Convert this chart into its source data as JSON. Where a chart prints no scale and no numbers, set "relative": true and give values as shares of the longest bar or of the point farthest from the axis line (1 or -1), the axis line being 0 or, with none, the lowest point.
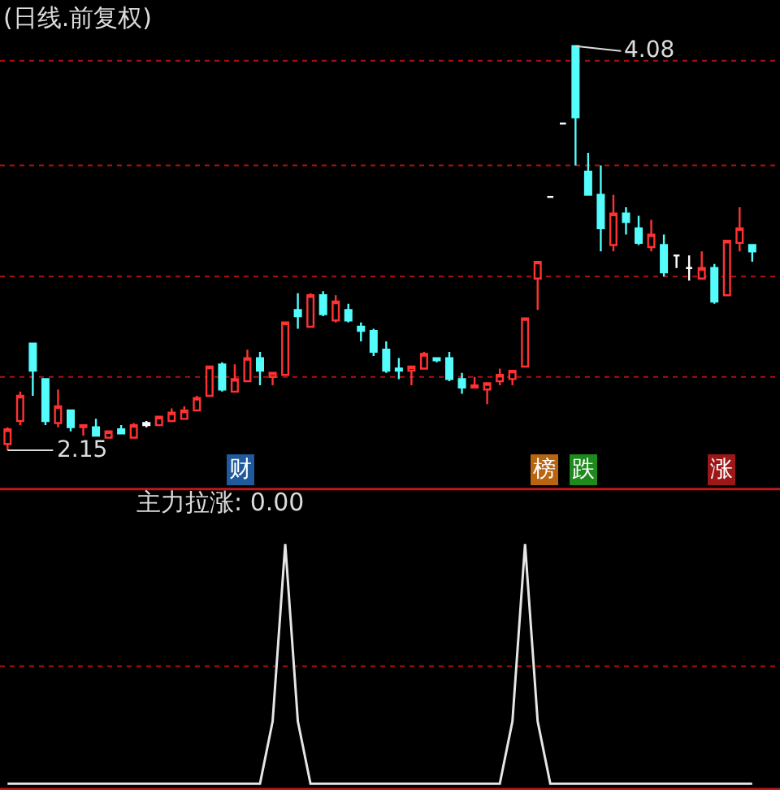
{
  "chart_data": [
    {
      "type": "candlestick",
      "title": "(日线.前复权)",
      "categories": [
        null,
        null,
        null,
        null,
        null,
        null,
        null,
        null,
        null,
        null,
        null,
        null,
        null,
        null,
        null,
        null,
        null,
        null,
        null,
        null,
        null,
        null,
        null,
        null,
        null,
        null,
        null,
        null,
        null,
        null,
        null,
        null,
        null,
        null,
        null,
        null,
        null,
        null,
        null,
        null,
        null,
        null,
        null,
        null,
        null,
        null,
        null,
        null,
        null,
        null,
        null,
        null,
        null,
        null,
        null,
        null,
        null,
        null,
        null,
        null
      ],
      "ohlc": [
        [
          2.18,
          2.26,
          2.15,
          2.25
        ],
        [
          2.29,
          2.43,
          2.27,
          2.41
        ],
        [
          2.66,
          2.66,
          2.41,
          2.53
        ],
        [
          2.49,
          2.49,
          2.27,
          2.29
        ],
        [
          2.28,
          2.44,
          2.26,
          2.36
        ],
        [
          2.34,
          2.34,
          2.24,
          2.26
        ],
        [
          2.26,
          2.27,
          2.22,
          2.27
        ],
        [
          2.26,
          2.3,
          2.22,
          2.22
        ],
        [
          2.21,
          2.24,
          2.21,
          2.24
        ],
        [
          2.25,
          2.27,
          2.23,
          2.23
        ],
        [
          2.21,
          2.28,
          2.21,
          2.27
        ],
        [
          2.27,
          2.29,
          2.26,
          2.28
        ],
        [
          2.27,
          2.31,
          2.27,
          2.31
        ],
        [
          2.29,
          2.35,
          2.29,
          2.33
        ],
        [
          2.3,
          2.36,
          2.3,
          2.34
        ],
        [
          2.34,
          2.41,
          2.34,
          2.4
        ],
        [
          2.41,
          2.55,
          2.41,
          2.55
        ],
        [
          2.56,
          2.57,
          2.43,
          2.44
        ],
        [
          2.43,
          2.56,
          2.43,
          2.49
        ],
        [
          2.48,
          2.63,
          2.48,
          2.59
        ],
        [
          2.59,
          2.62,
          2.46,
          2.53
        ],
        [
          2.5,
          2.52,
          2.46,
          2.52
        ],
        [
          2.51,
          2.76,
          2.51,
          2.76
        ],
        [
          2.82,
          2.9,
          2.73,
          2.79
        ],
        [
          2.74,
          2.9,
          2.74,
          2.89
        ],
        [
          2.89,
          2.91,
          2.79,
          2.8
        ],
        [
          2.77,
          2.89,
          2.76,
          2.86
        ],
        [
          2.82,
          2.85,
          2.76,
          2.77
        ],
        [
          2.74,
          2.76,
          2.67,
          2.72
        ],
        [
          2.72,
          2.73,
          2.6,
          2.62
        ],
        [
          2.63,
          2.67,
          2.52,
          2.53
        ],
        [
          2.54,
          2.59,
          2.49,
          2.53
        ],
        [
          2.53,
          2.55,
          2.46,
          2.55
        ],
        [
          2.54,
          2.62,
          2.54,
          2.61
        ],
        [
          2.59,
          2.59,
          2.57,
          2.58
        ],
        [
          2.59,
          2.62,
          2.48,
          2.49
        ],
        [
          2.49,
          2.52,
          2.42,
          2.45
        ],
        [
          2.45,
          2.5,
          2.45,
          2.46
        ],
        [
          2.44,
          2.47,
          2.37,
          2.47
        ],
        [
          2.48,
          2.54,
          2.46,
          2.51
        ],
        [
          2.49,
          2.53,
          2.46,
          2.53
        ],
        [
          2.55,
          2.78,
          2.55,
          2.78
        ],
        [
          2.97,
          3.05,
          2.82,
          3.05
        ],
        [
          3.36,
          3.36,
          3.36,
          3.36
        ],
        [
          3.71,
          3.71,
          3.71,
          3.71
        ],
        [
          4.08,
          4.08,
          3.51,
          3.74
        ],
        [
          3.48,
          3.57,
          3.37,
          3.37
        ],
        [
          3.37,
          3.51,
          3.1,
          3.21
        ],
        [
          3.13,
          3.37,
          3.1,
          3.28
        ],
        [
          3.28,
          3.31,
          3.18,
          3.24
        ],
        [
          3.21,
          3.27,
          3.13,
          3.14
        ],
        [
          3.12,
          3.25,
          3.1,
          3.18
        ],
        [
          3.13,
          3.18,
          2.98,
          3.0
        ],
        [
          3.08,
          3.08,
          3.02,
          3.08
        ],
        [
          3.02,
          3.08,
          2.96,
          3.02
        ],
        [
          2.97,
          3.1,
          2.97,
          3.02
        ],
        [
          3.02,
          3.04,
          2.85,
          2.86
        ],
        [
          2.89,
          3.15,
          2.89,
          3.15
        ],
        [
          3.14,
          3.31,
          3.1,
          3.21
        ],
        [
          3.13,
          3.13,
          3.05,
          3.1
        ]
      ],
      "colors": [
        "#ff3232",
        "#ff3232",
        "#54fcfc",
        "#54fcfc",
        "#ff3232",
        "#54fcfc",
        "#ff3232",
        "#54fcfc",
        "#ff3232",
        "#54fcfc",
        "#ff3232",
        "#ffffff",
        "#ff3232",
        "#ff3232",
        "#ff3232",
        "#ff3232",
        "#ff3232",
        "#54fcfc",
        "#ff3232",
        "#ff3232",
        "#54fcfc",
        "#ff3232",
        "#ff3232",
        "#54fcfc",
        "#ff3232",
        "#54fcfc",
        "#ff3232",
        "#54fcfc",
        "#54fcfc",
        "#54fcfc",
        "#54fcfc",
        "#54fcfc",
        "#ff3232",
        "#ff3232",
        "#54fcfc",
        "#54fcfc",
        "#54fcfc",
        "#ff3232",
        "#ff3232",
        "#ff3232",
        "#ff3232",
        "#ff3232",
        "#ff3232",
        "#ffffff",
        "#ffffff",
        "#54fcfc",
        "#54fcfc",
        "#54fcfc",
        "#ff3232",
        "#54fcfc",
        "#54fcfc",
        "#ff3232",
        "#54fcfc",
        "#ffffff",
        "#ffffff",
        "#ff3232",
        "#54fcfc",
        "#ff3232",
        "#ff3232",
        "#54fcfc"
      ],
      "ref_lines": [
        {
          "axis": "y",
          "value": 4.01,
          "color": "#b01010",
          "line_style": "dotted"
        },
        {
          "axis": "y",
          "value": 3.51,
          "color": "#b01010",
          "line_style": "dotted"
        },
        {
          "axis": "y",
          "value": 2.98,
          "color": "#b01010",
          "line_style": "dotted"
        },
        {
          "axis": "y",
          "value": 2.5,
          "color": "#b01010",
          "line_style": "dotted"
        }
      ],
      "annotations": [
        "4.08",
        "2.15",
        "财",
        "榜",
        "跌",
        "涨"
      ],
      "tick_labels": false
    },
    {
      "type": "line",
      "title": "主力拉涨: 0.00",
      "relative": true,
      "categories": [
        null,
        null,
        null,
        null,
        null,
        null,
        null,
        null,
        null,
        null,
        null,
        null,
        null,
        null,
        null,
        null,
        null,
        null,
        null,
        null,
        null,
        null,
        null,
        null,
        null,
        null,
        null,
        null,
        null,
        null,
        null,
        null,
        null,
        null,
        null,
        null,
        null,
        null,
        null,
        null,
        null,
        null,
        null,
        null,
        null,
        null,
        null,
        null,
        null,
        null,
        null,
        null,
        null,
        null,
        null,
        null,
        null,
        null,
        null,
        null
      ],
      "series": [
        {
          "color": "#e6e6e6",
          "values": [
            0,
            0,
            0,
            0,
            0,
            0,
            0,
            0,
            0,
            0,
            0,
            0,
            0,
            0,
            0,
            0,
            0,
            0,
            0,
            0,
            0,
            0.26,
            1,
            0.26,
            0,
            0,
            0,
            0,
            0,
            0,
            0,
            0,
            0,
            0,
            0,
            0,
            0,
            0,
            0,
            0,
            0.26,
            1,
            0.26,
            0,
            0,
            0,
            0,
            0,
            0,
            0,
            0,
            0,
            0,
            0,
            0,
            0,
            0,
            0,
            0,
            0
          ]
        }
      ],
      "ref_lines": [
        {
          "axis": "y",
          "value": 0.49,
          "color": "#b01010",
          "line_style": "dotted"
        }
      ]
    }
  ]
}
